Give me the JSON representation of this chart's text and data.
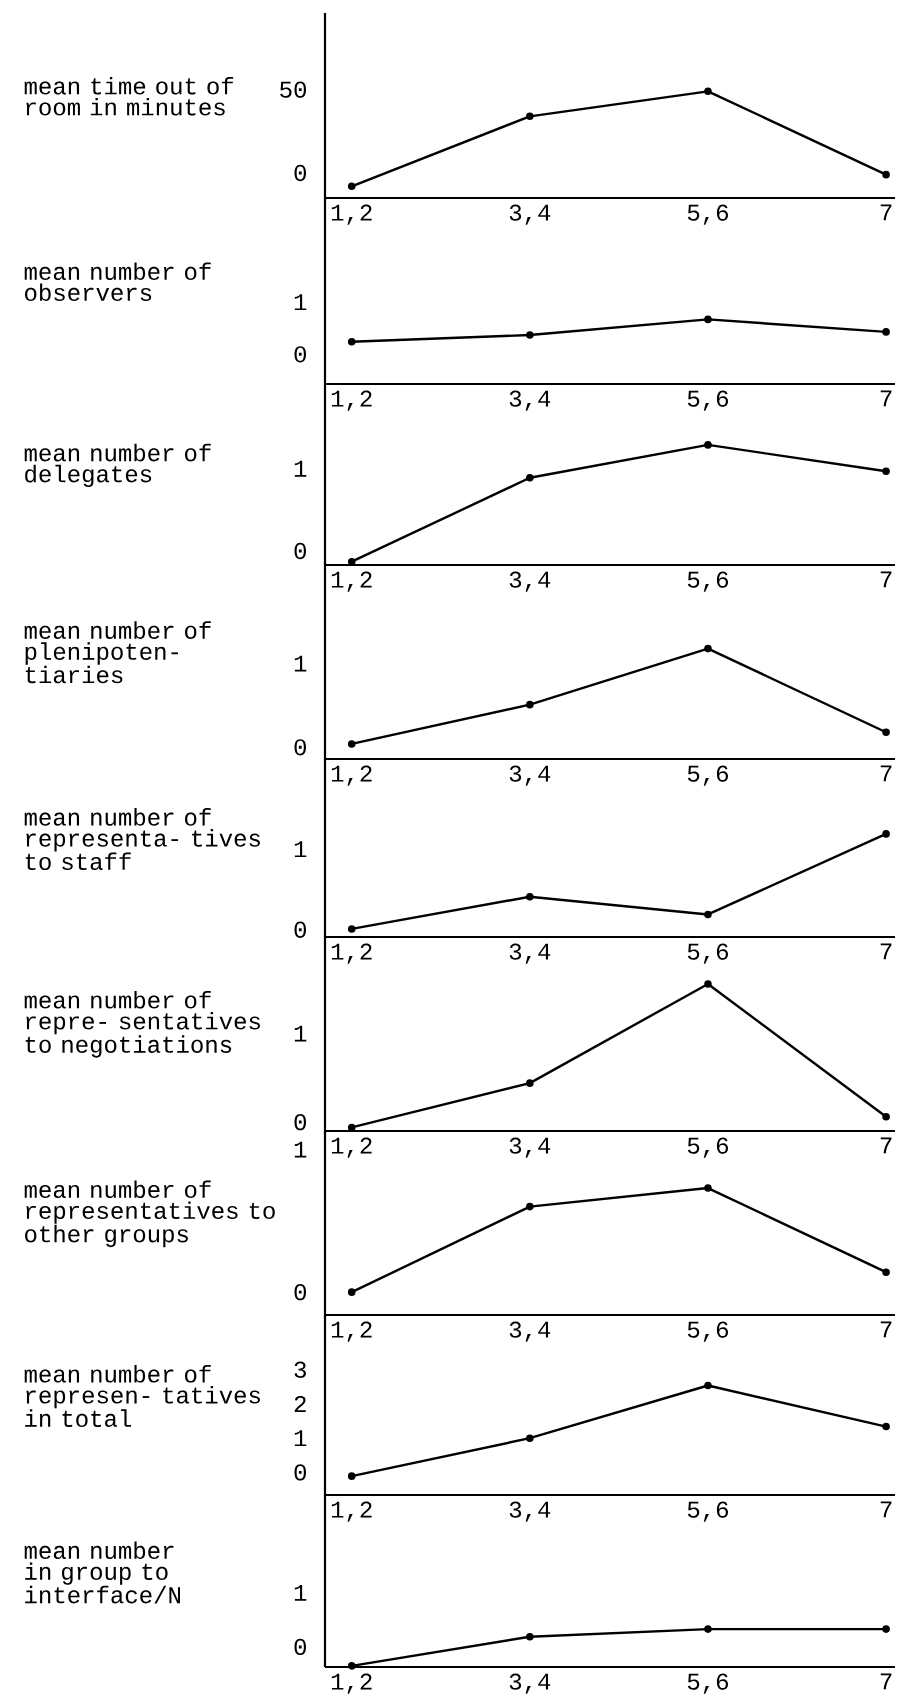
{
  "chart_data": [
    {
      "type": "line",
      "ylabel": "mean time out of room in minutes",
      "categories": [
        "1,2",
        "3,4",
        "5,6",
        "7"
      ],
      "values": [
        -8,
        34,
        49,
        -1
      ],
      "color": "#000000",
      "marker": "circle",
      "ylim": [
        -15,
        96
      ],
      "yticks": [
        0,
        50
      ]
    },
    {
      "type": "line",
      "ylabel": "mean number of observers",
      "categories": [
        "1,2",
        "3,4",
        "5,6",
        "7"
      ],
      "values": [
        0.24,
        0.37,
        0.67,
        0.43
      ],
      "color": "#000000",
      "marker": "circle",
      "ylim": [
        -0.57,
        3.0
      ],
      "yticks": [
        0,
        1
      ]
    },
    {
      "type": "line",
      "ylabel": "mean number of delegates",
      "categories": [
        "1,2",
        "3,4",
        "5,6",
        "7"
      ],
      "values": [
        -0.13,
        0.89,
        1.29,
        0.97
      ],
      "color": "#000000",
      "marker": "circle",
      "ylim": [
        -0.17,
        2.03
      ],
      "yticks": [
        0,
        1
      ]
    },
    {
      "type": "line",
      "ylabel": "mean number of plenipoten- tiaries",
      "categories": [
        "1,2",
        "3,4",
        "5,6",
        "7"
      ],
      "values": [
        0.04,
        0.51,
        1.18,
        0.18
      ],
      "color": "#000000",
      "marker": "circle",
      "ylim": [
        -0.14,
        2.18
      ],
      "yticks": [
        0,
        1
      ]
    },
    {
      "type": "line",
      "ylabel": "mean number of representa- tives to staff",
      "categories": [
        "1,2",
        "3,4",
        "5,6",
        "7"
      ],
      "values": [
        0.01,
        0.41,
        0.19,
        1.19
      ],
      "color": "#000000",
      "marker": "circle",
      "ylim": [
        -0.09,
        2.12
      ],
      "yticks": [
        0,
        1
      ]
    },
    {
      "type": "line",
      "ylabel": "mean number of repre- sentatives to negotiations",
      "categories": [
        "1,2",
        "3,4",
        "5,6",
        "7"
      ],
      "values": [
        -0.06,
        0.44,
        1.56,
        0.06
      ],
      "color": "#000000",
      "marker": "circle",
      "ylim": [
        -0.1,
        2.09
      ],
      "yticks": [
        0,
        1
      ]
    },
    {
      "type": "line",
      "ylabel": "mean number of representatives to other groups",
      "categories": [
        "1,2",
        "3,4",
        "5,6",
        "7"
      ],
      "values": [
        0,
        0.6,
        0.73,
        0.14
      ],
      "color": "#000000",
      "marker": "circle",
      "ylim": [
        -0.16,
        1.13
      ],
      "yticks": [
        0,
        1
      ]
    },
    {
      "type": "line",
      "ylabel": "mean number of represen- tatives in total",
      "categories": [
        "1,2",
        "3,4",
        "5,6",
        "7"
      ],
      "values": [
        -0.11,
        1.0,
        2.54,
        1.34
      ],
      "color": "#000000",
      "marker": "circle",
      "ylim": [
        -0.66,
        4.6
      ],
      "yticks": [
        0,
        1,
        2,
        3
      ]
    },
    {
      "type": "line",
      "ylabel": "mean number in group to interface/N",
      "categories": [
        "1,2",
        "3,4",
        "5,6",
        "7"
      ],
      "values": [
        -0.35,
        0.19,
        0.33,
        0.33
      ],
      "color": "#000000",
      "marker": "circle",
      "ylim": [
        -0.37,
        2.81
      ],
      "yticks": [
        0,
        1
      ]
    }
  ]
}
